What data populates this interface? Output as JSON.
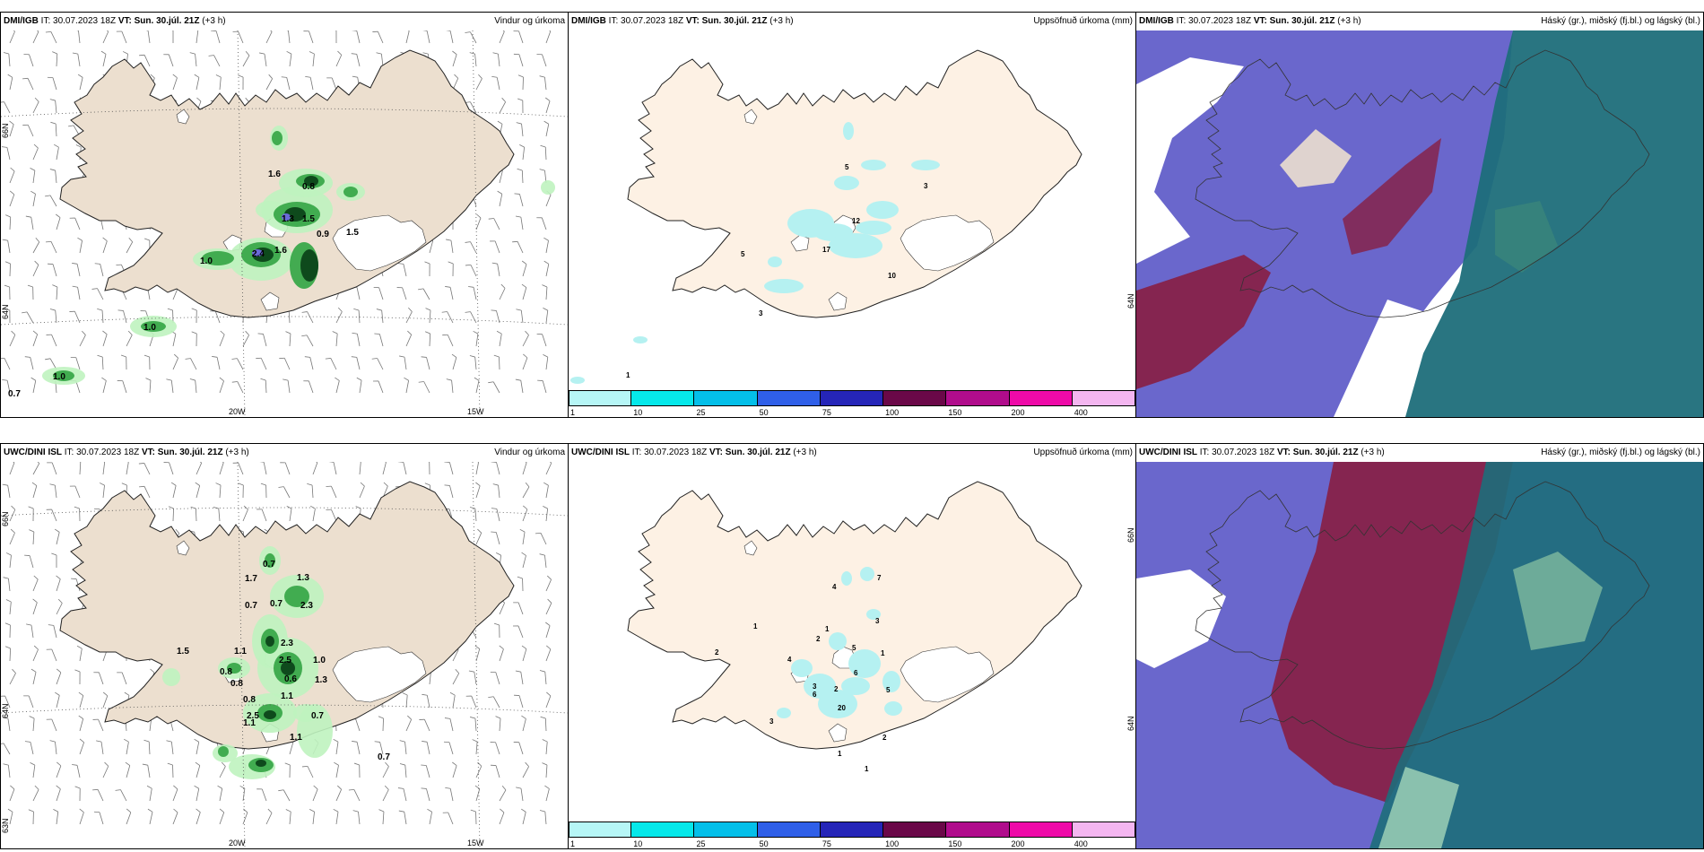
{
  "panels": {
    "p1": {
      "model": "DMI/IGB",
      "it_label": "IT:",
      "it_value": "30.07.2023 18Z",
      "vt_label": "VT:",
      "vt_value": "Sun. 30.júl. 21Z",
      "offset": "(+3 h)",
      "title": "Vindur og úrkoma",
      "lat_labels": [
        "66N",
        "64N"
      ],
      "lon_labels": [
        "20W",
        "15W"
      ],
      "values": [
        "1.6",
        "0.8",
        "1.3",
        "1.5",
        "2.4",
        "1.6",
        "0.9",
        "1.0",
        "1.5",
        "1.0",
        "1.0",
        "0.7"
      ]
    },
    "p2": {
      "model": "DMI/IGB",
      "it_label": "IT:",
      "it_value": "30.07.2023 18Z",
      "vt_label": "VT:",
      "vt_value": "Sun. 30.júl. 21Z",
      "offset": "(+3 h)",
      "title": "Uppsöfnuð úrkoma (mm)",
      "lat_labels": [
        "64N"
      ],
      "values": [
        "5",
        "3",
        "12",
        "5",
        "17",
        "10",
        "3",
        "1"
      ]
    },
    "p3": {
      "model": "DMI/IGB",
      "it_label": "IT:",
      "it_value": "30.07.2023 18Z",
      "vt_label": "VT:",
      "vt_value": "Sun. 30.júl. 21Z",
      "offset": "(+3 h)",
      "title": "Háský (gr.), miðský (fj.bl.) og lágský (bl.)"
    },
    "p4": {
      "model": "UWC/DINI ISL",
      "it_label": "IT:",
      "it_value": "30.07.2023 18Z",
      "vt_label": "VT:",
      "vt_value": "Sun. 30.júl. 21Z",
      "offset": "(+3 h)",
      "title": "Vindur og úrkoma",
      "lat_labels": [
        "66N",
        "64N",
        "63N"
      ],
      "lon_labels": [
        "20W",
        "15W"
      ],
      "values": [
        "0.7",
        "1.7",
        "1.3",
        "0.7",
        "0.7",
        "2.3",
        "1.5",
        "2.3",
        "1.1",
        "2.5",
        "1.0",
        "0.8",
        "0.6",
        "0.8",
        "1.3",
        "0.8",
        "1.1",
        "2.5",
        "0.7",
        "1.1",
        "1.1",
        "0.7"
      ]
    },
    "p5": {
      "model": "UWC/DINI ISL",
      "it_label": "IT:",
      "it_value": "30.07.2023 18Z",
      "vt_label": "VT:",
      "vt_value": "Sun. 30.júl. 21Z",
      "offset": "(+3 h)",
      "title": "Uppsöfnuð úrkoma (mm)",
      "lat_labels": [
        "66N",
        "64N"
      ],
      "values": [
        "4",
        "7",
        "1",
        "3",
        "2",
        "1",
        "2",
        "4",
        "5",
        "6",
        "1",
        "3",
        "6",
        "2",
        "5",
        "20",
        "3",
        "2",
        "1",
        "1"
      ]
    },
    "p6": {
      "model": "UWC/DINI ISL",
      "it_label": "IT:",
      "it_value": "30.07.2023 18Z",
      "vt_label": "VT:",
      "vt_value": "Sun. 30.júl. 21Z",
      "offset": "(+3 h)",
      "title": "Háský (gr.), miðský (fj.bl.) og lágský (bl.)"
    }
  },
  "colorbar": {
    "ticks": [
      "1",
      "10",
      "25",
      "50",
      "75",
      "100",
      "150",
      "200",
      "400"
    ],
    "colors": [
      "#b6f6f6",
      "#06e8ea",
      "#04bfe9",
      "#2f5fe8",
      "#2525b8",
      "#6a0848",
      "#b00c8c",
      "#ee0aa8",
      "#f4b6f0"
    ]
  },
  "colors": {
    "land": "#ecdfcf",
    "land_precip_panel": "#fdf1e4",
    "precip_light": "#bff3bf",
    "precip_mid": "#3aa84a",
    "precip_dark": "#0e4a1c",
    "cloud_low": "#5a56c6",
    "cloud_mid": "#1d6e7a",
    "cloud_high": "#8a1a3a"
  }
}
